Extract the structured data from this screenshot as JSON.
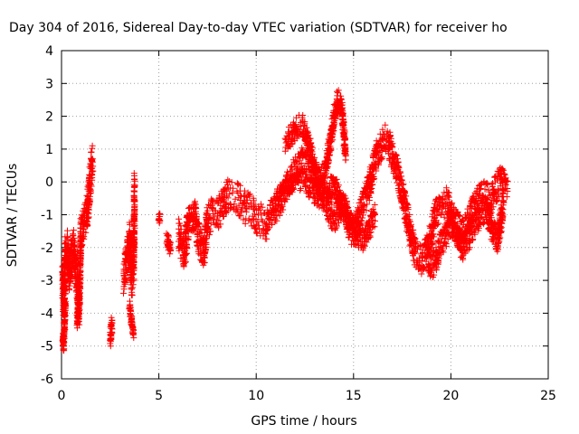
{
  "chart_data": {
    "type": "scatter",
    "title": "Day 304 of 2016, Sidereal Day-to-day VTEC variation (SDTVAR) for receiver ho",
    "xlabel": "GPS time / hours",
    "ylabel": "SDTVAR / TECUs",
    "xlim": [
      0,
      25
    ],
    "ylim": [
      -6,
      4
    ],
    "xticks": [
      "0",
      "5",
      "10",
      "15",
      "20",
      "25"
    ],
    "yticks": [
      "-6",
      "-5",
      "-4",
      "-3",
      "-2",
      "-1",
      "0",
      "1",
      "2",
      "3",
      "4"
    ],
    "grid": true,
    "marker": "+",
    "series_color": "#ff0000",
    "series": [
      {
        "name": "SDTVAR",
        "segments": [
          {
            "x": [
              0.0,
              0.1,
              0.2,
              0.3,
              0.4,
              0.5,
              0.6,
              0.7,
              0.8,
              0.9,
              1.0,
              1.1,
              1.2,
              1.3,
              1.4,
              1.5,
              1.6
            ],
            "y": [
              -2.4,
              -3.6,
              -2.2,
              -2.0,
              -2.8,
              -2.3,
              -2.0,
              -2.6,
              -3.0,
              -3.8,
              -1.6,
              -1.3,
              -1.1,
              -1.0,
              -0.4,
              0.2,
              0.7
            ],
            "spread": 0.55
          },
          {
            "x": [
              0.05,
              0.1,
              0.15,
              0.2
            ],
            "y": [
              -4.6,
              -5.0,
              -4.3,
              -3.4
            ],
            "spread": 0.25
          },
          {
            "x": [
              0.8,
              0.85,
              0.9
            ],
            "y": [
              -4.3,
              -3.9,
              -3.5
            ],
            "spread": 0.2
          },
          {
            "x": [
              2.5,
              2.55,
              2.6
            ],
            "y": [
              -4.8,
              -4.5,
              -4.3
            ],
            "spread": 0.25
          },
          {
            "x": [
              3.2,
              3.3,
              3.4,
              3.5,
              3.6,
              3.7,
              3.75
            ],
            "y": [
              -3.0,
              -2.5,
              -2.2,
              -1.8,
              -3.0,
              -2.6,
              -0.3
            ],
            "spread": 0.6
          },
          {
            "x": [
              3.5,
              3.6,
              3.7
            ],
            "y": [
              -3.8,
              -4.3,
              -4.6
            ],
            "spread": 0.2
          },
          {
            "x": [
              5.0,
              5.05
            ],
            "y": [
              -1.0,
              -1.2
            ],
            "spread": 0.2
          },
          {
            "x": [
              5.4,
              5.6
            ],
            "y": [
              -1.7,
              -2.1
            ],
            "spread": 0.25
          },
          {
            "x": [
              6.0,
              6.3,
              6.5,
              6.8,
              7.0,
              7.3,
              7.5,
              7.8,
              8.0,
              8.3,
              8.5,
              8.8,
              9.0,
              9.3,
              9.5,
              9.8,
              10.0,
              10.3,
              10.5,
              10.8
            ],
            "y": [
              -1.6,
              -2.2,
              -1.3,
              -0.9,
              -1.6,
              -2.2,
              -1.2,
              -0.9,
              -1.0,
              -0.7,
              -0.4,
              -0.5,
              -0.5,
              -0.7,
              -0.8,
              -0.9,
              -1.1,
              -1.2,
              -1.3,
              -1.0
            ],
            "spread": 0.5
          },
          {
            "x": [
              10.8,
              11.0,
              11.3,
              11.5,
              11.8,
              12.0,
              12.2,
              12.4,
              12.6,
              12.8,
              13.0,
              13.2,
              13.4,
              13.6,
              13.8,
              14.0,
              14.2,
              14.4,
              14.6,
              14.8,
              15.0,
              15.2,
              15.4,
              15.6,
              15.8,
              16.0,
              16.2,
              16.4,
              16.6,
              16.8,
              17.0,
              17.2,
              17.4,
              17.6,
              17.8,
              18.0,
              18.2,
              18.5,
              18.8,
              19.0,
              19.2,
              19.5,
              19.8,
              20.0,
              20.3,
              20.6,
              20.9,
              21.2,
              21.5,
              21.8,
              22.0,
              22.3,
              22.6,
              22.9
            ],
            "y": [
              -1.0,
              -0.8,
              -0.5,
              -0.2,
              0.1,
              0.3,
              0.5,
              0.7,
              0.6,
              0.4,
              0.2,
              0.0,
              -0.3,
              -0.6,
              -0.9,
              -1.1,
              -0.9,
              -0.6,
              -0.9,
              -1.4,
              -1.6,
              -1.2,
              -0.8,
              -0.5,
              -0.2,
              0.4,
              0.8,
              1.1,
              1.3,
              1.2,
              0.8,
              0.4,
              -0.1,
              -0.6,
              -1.2,
              -1.8,
              -2.2,
              -2.4,
              -2.0,
              -1.6,
              -1.0,
              -0.7,
              -0.6,
              -0.9,
              -1.3,
              -1.6,
              -1.2,
              -0.8,
              -0.5,
              -0.4,
              -0.6,
              -0.2,
              0.1,
              -0.2
            ],
            "spread": 0.45
          },
          {
            "x": [
              11.5,
              11.8,
              12.0,
              12.2,
              12.4,
              12.6,
              12.8,
              13.0,
              13.2,
              13.5,
              13.8,
              14.0,
              14.2,
              14.4,
              14.6
            ],
            "y": [
              1.2,
              1.4,
              1.6,
              1.75,
              1.7,
              1.4,
              0.9,
              0.4,
              0.1,
              0.3,
              1.2,
              2.0,
              2.5,
              2.2,
              0.8
            ],
            "spread": 0.35
          },
          {
            "x": [
              11.0,
              11.3,
              11.6,
              11.9,
              12.2,
              12.5,
              12.8,
              13.1,
              13.4,
              13.7,
              14.0,
              14.3,
              14.6,
              14.9,
              15.2,
              15.5,
              15.8,
              16.1
            ],
            "y": [
              -0.6,
              -0.4,
              -0.2,
              0.0,
              0.1,
              0.0,
              -0.2,
              -0.4,
              -0.5,
              -0.3,
              0.0,
              -0.6,
              -1.0,
              -1.3,
              -1.6,
              -1.8,
              -1.4,
              -1.0
            ],
            "spread": 0.35
          },
          {
            "x": [
              18.8,
              19.0,
              19.2,
              19.4,
              19.6,
              19.8,
              20.0,
              20.3,
              20.6,
              20.9,
              21.2,
              21.5,
              21.8,
              22.1,
              22.4,
              22.7
            ],
            "y": [
              -2.2,
              -2.6,
              -2.4,
              -2.0,
              -1.8,
              -1.5,
              -1.2,
              -1.6,
              -2.0,
              -1.7,
              -1.3,
              -1.0,
              -0.8,
              -1.4,
              -1.8,
              -0.6
            ],
            "spread": 0.4
          }
        ]
      }
    ]
  }
}
